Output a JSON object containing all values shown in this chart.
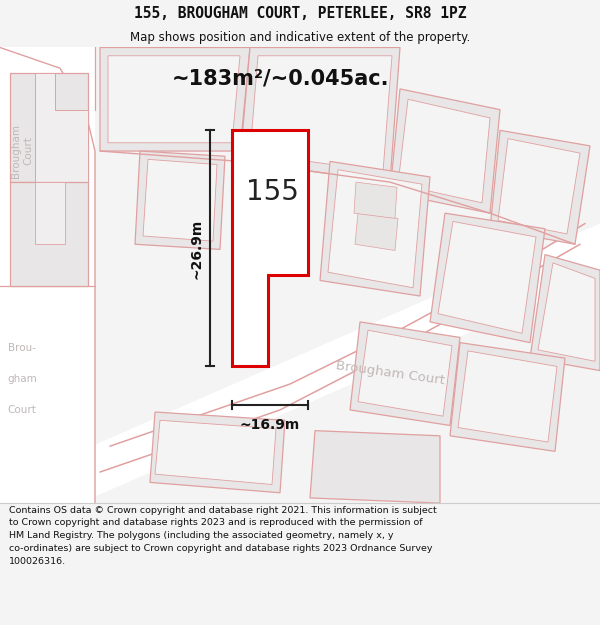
{
  "title_line1": "155, BROUGHAM COURT, PETERLEE, SR8 1PZ",
  "title_line2": "Map shows position and indicative extent of the property.",
  "area_text": "~183m²/~0.045ac.",
  "dim_vertical": "~26.9m",
  "dim_horizontal": "~16.9m",
  "property_label": "155",
  "street_label": "Brougham Court",
  "copyright_text": "Contains OS data © Crown copyright and database right 2021. This information is subject to Crown copyright and database rights 2023 and is reproduced with the permission of HM Land Registry. The polygons (including the associated geometry, namely x, y co-ordinates) are subject to Crown copyright and database rights 2023 Ordnance Survey 100026316.",
  "bg_color": "#f5f4f4",
  "map_bg": "#f5f4f4",
  "block_fill": "#e8e6e6",
  "block_edge": "#e0a0a0",
  "road_fill": "#ffffff",
  "property_fill": "#ffffff",
  "property_edge": "#dd0000",
  "dim_color": "#222222",
  "title_color": "#111111",
  "street_color": "#cccccc"
}
